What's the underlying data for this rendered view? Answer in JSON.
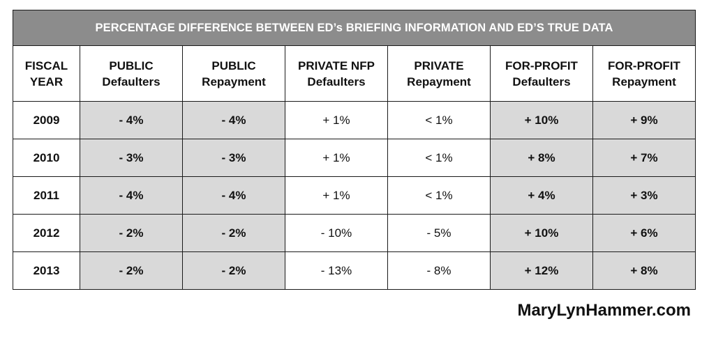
{
  "chart_data": {
    "type": "table",
    "title": "PERCENTAGE DIFFERENCE BETWEEN ED’s BRIEFING INFORMATION AND ED’S TRUE DATA",
    "columns": [
      {
        "line1": "FISCAL",
        "line2": "YEAR"
      },
      {
        "line1": "PUBLIC",
        "line2": "Defaulters"
      },
      {
        "line1": "PUBLIC",
        "line2": "Repayment"
      },
      {
        "line1": "PRIVATE NFP",
        "line2": "Defaulters"
      },
      {
        "line1": "PRIVATE",
        "line2": "Repayment"
      },
      {
        "line1": "FOR-PROFIT",
        "line2": "Defaulters"
      },
      {
        "line1": "FOR-PROFIT",
        "line2": "Repayment"
      }
    ],
    "rows": [
      [
        "2009",
        "- 4%",
        "- 4%",
        "+ 1%",
        "< 1%",
        "+ 10%",
        "+ 9%"
      ],
      [
        "2010",
        "- 3%",
        "- 3%",
        "+ 1%",
        "< 1%",
        "+ 8%",
        "+ 7%"
      ],
      [
        "2011",
        "- 4%",
        "- 4%",
        "+ 1%",
        "< 1%",
        "+ 4%",
        "+ 3%"
      ],
      [
        "2012",
        "- 2%",
        "- 2%",
        "- 10%",
        "- 5%",
        "+ 10%",
        "+ 6%"
      ],
      [
        "2013",
        "- 2%",
        "- 2%",
        "- 13%",
        "- 8%",
        "+ 12%",
        "+ 8%"
      ]
    ]
  },
  "footer": {
    "credit": "MaryLynHammer.com"
  }
}
